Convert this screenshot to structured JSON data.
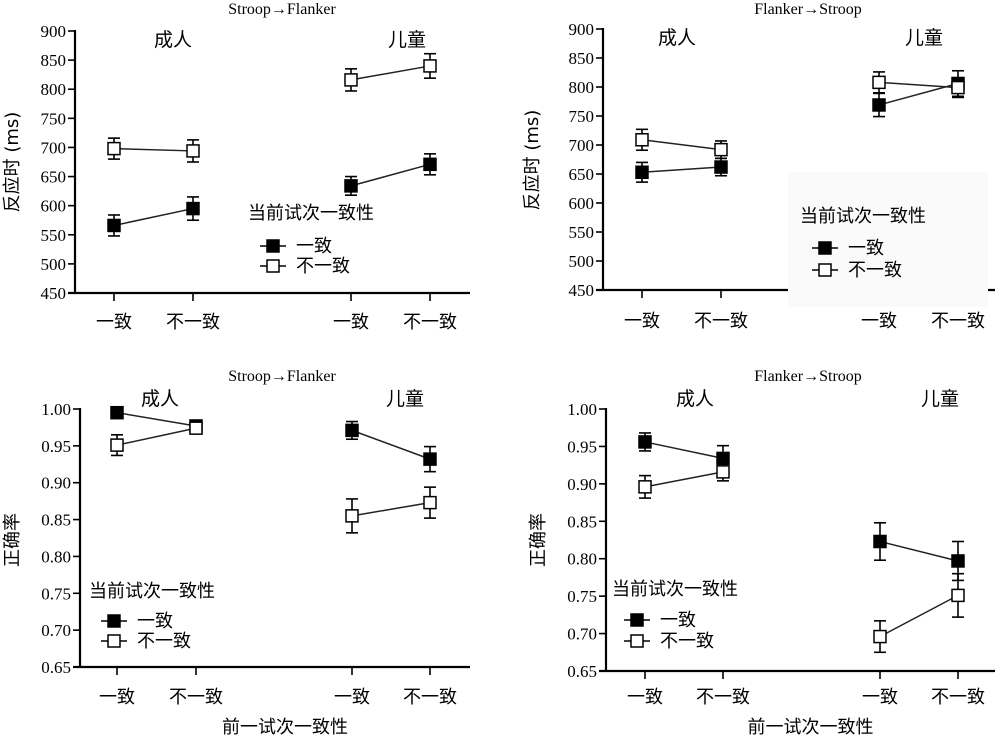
{
  "chart_data": [
    {
      "type": "line",
      "title": "Stroop→Flanker",
      "ylabel": "反应时 (ms)",
      "xlabel": "",
      "ylim": [
        450,
        900
      ],
      "yticks": [
        450,
        500,
        550,
        600,
        650,
        700,
        750,
        800,
        850,
        900
      ],
      "ytick_labels": [
        "450",
        "500",
        "550",
        "600",
        "650",
        "700",
        "750",
        "800",
        "850",
        "900"
      ],
      "groups": [
        "成人",
        "儿童"
      ],
      "categories": [
        "一致",
        "不一致"
      ],
      "legend": {
        "title": "当前试次一致性",
        "position": "center-right"
      },
      "series": [
        {
          "name": "一致",
          "marker": "filled-square",
          "values": {
            "成人": [
              566,
              595
            ],
            "儿童": [
              634,
              671
            ]
          },
          "errors": {
            "成人": [
              18,
              20
            ],
            "儿童": [
              16,
              18
            ]
          }
        },
        {
          "name": "不一致",
          "marker": "open-square",
          "values": {
            "成人": [
              698,
              694
            ],
            "儿童": [
              816,
              840
            ]
          },
          "errors": {
            "成人": [
              18,
              19
            ],
            "儿童": [
              19,
              21
            ]
          }
        }
      ]
    },
    {
      "type": "line",
      "title": "Flanker→Stroop",
      "ylabel": "反应时 (ms)",
      "xlabel": "",
      "ylim": [
        450,
        900
      ],
      "yticks": [
        450,
        500,
        550,
        600,
        650,
        700,
        750,
        800,
        850,
        900
      ],
      "ytick_labels": [
        "450",
        "500",
        "550",
        "600",
        "650",
        "700",
        "750",
        "800",
        "850",
        "900"
      ],
      "groups": [
        "成人",
        "儿童"
      ],
      "categories": [
        "一致",
        "不一致"
      ],
      "legend": {
        "title": "当前试次一致性",
        "position": "center-right"
      },
      "series": [
        {
          "name": "一致",
          "marker": "filled-square",
          "values": {
            "成人": [
              653,
              662
            ],
            "儿童": [
              769,
              806
            ]
          },
          "errors": {
            "成人": [
              17,
              15
            ],
            "儿童": [
              20,
              22
            ]
          }
        },
        {
          "name": "不一致",
          "marker": "open-square",
          "values": {
            "成人": [
              709,
              692
            ],
            "儿童": [
              808,
              799
            ]
          },
          "errors": {
            "成人": [
              18,
              15
            ],
            "儿童": [
              18,
              17
            ]
          }
        }
      ]
    },
    {
      "type": "line",
      "title": "Stroop→Flanker",
      "ylabel": "正确率",
      "xlabel": "前一试次一致性",
      "ylim": [
        0.65,
        1.0
      ],
      "yticks": [
        0.65,
        0.7,
        0.75,
        0.8,
        0.85,
        0.9,
        0.95,
        1.0
      ],
      "ytick_labels": [
        "0.65",
        "0.70",
        "0.75",
        "0.80",
        "0.85",
        "0.90",
        "0.95",
        "1.00"
      ],
      "groups": [
        "成人",
        "儿童"
      ],
      "categories": [
        "一致",
        "不一致"
      ],
      "legend": {
        "title": "当前试次一致性",
        "position": "bottom-left"
      },
      "series": [
        {
          "name": "一致",
          "marker": "filled-square",
          "values": {
            "成人": [
              0.995,
              0.977
            ],
            "儿童": [
              0.971,
              0.932
            ]
          },
          "errors": {
            "成人": [
              0.002,
              0.006
            ],
            "儿童": [
              0.012,
              0.017
            ]
          }
        },
        {
          "name": "不一致",
          "marker": "open-square",
          "values": {
            "成人": [
              0.951,
              0.974
            ],
            "儿童": [
              0.855,
              0.873
            ]
          },
          "errors": {
            "成人": [
              0.014,
              0.006
            ],
            "儿童": [
              0.023,
              0.021
            ]
          }
        }
      ]
    },
    {
      "type": "line",
      "title": "Flanker→Stroop",
      "ylabel": "正确率",
      "xlabel": "前一试次一致性",
      "ylim": [
        0.65,
        1.0
      ],
      "yticks": [
        0.65,
        0.7,
        0.75,
        0.8,
        0.85,
        0.9,
        0.95,
        1.0
      ],
      "ytick_labels": [
        "0.65",
        "0.70",
        "0.75",
        "0.80",
        "0.85",
        "0.90",
        "0.95",
        "1.00"
      ],
      "groups": [
        "成人",
        "儿童"
      ],
      "categories": [
        "一致",
        "不一致"
      ],
      "legend": {
        "title": "当前试次一致性",
        "position": "bottom-left"
      },
      "series": [
        {
          "name": "一致",
          "marker": "filled-square",
          "values": {
            "成人": [
              0.956,
              0.934
            ],
            "儿童": [
              0.823,
              0.797
            ]
          },
          "errors": {
            "成人": [
              0.012,
              0.017
            ],
            "儿童": [
              0.025,
              0.026
            ]
          }
        },
        {
          "name": "不一致",
          "marker": "open-square",
          "values": {
            "成人": [
              0.896,
              0.916
            ],
            "儿童": [
              0.696,
              0.751
            ]
          },
          "errors": {
            "成人": [
              0.015,
              0.012
            ],
            "儿童": [
              0.021,
              0.029
            ]
          }
        }
      ]
    }
  ]
}
